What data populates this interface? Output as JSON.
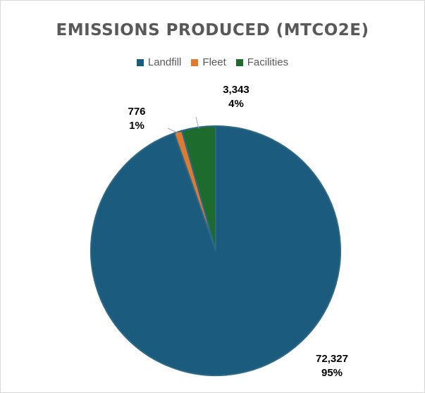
{
  "chart_data": {
    "type": "pie",
    "title": "EMISSIONS PRODUCED (MTCO2E)",
    "legend_position": "top",
    "slices": [
      {
        "name": "Landfill",
        "value": 72327,
        "value_label": "72,327",
        "percent_label": "95%",
        "color": "#1b5c7e"
      },
      {
        "name": "Fleet",
        "value": 776,
        "value_label": "776",
        "percent_label": "1%",
        "color": "#e07a2e"
      },
      {
        "name": "Facilities",
        "value": 3343,
        "value_label": "3,343",
        "percent_label": "4%",
        "color": "#1e6b2e"
      }
    ]
  }
}
